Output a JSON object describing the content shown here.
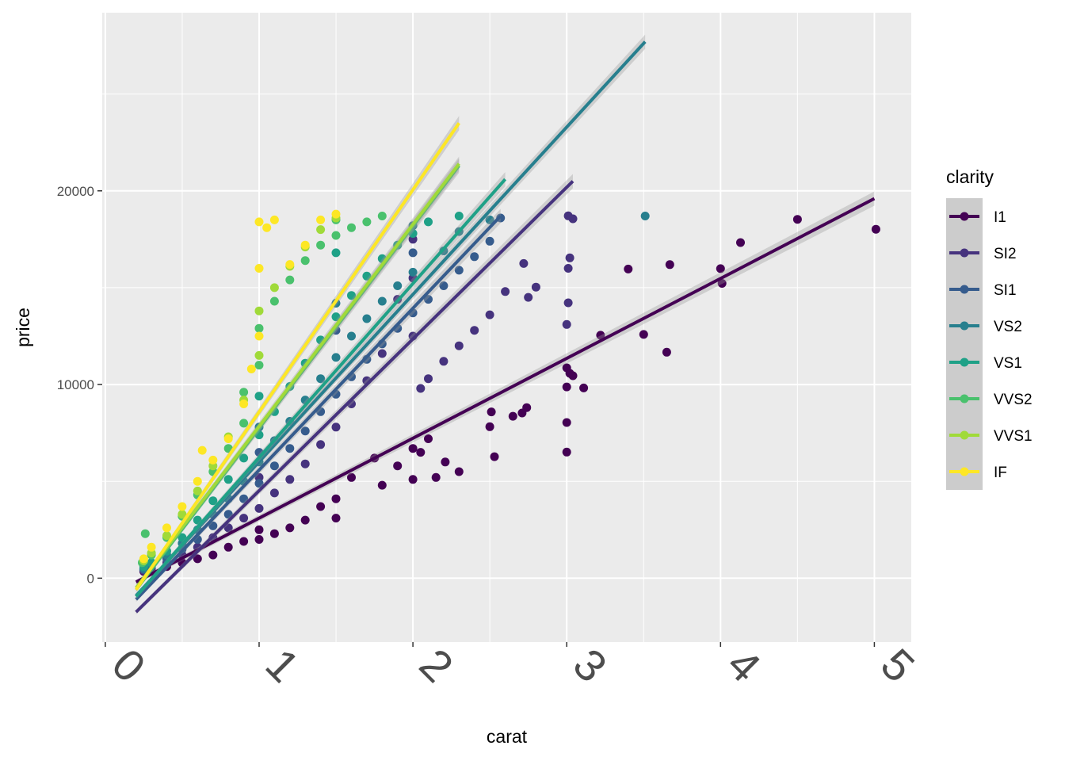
{
  "chart_data": {
    "type": "scatter",
    "title": "",
    "xlabel": "carat",
    "ylabel": "price",
    "xlim": [
      -0.02,
      5.24
    ],
    "ylim": [
      -3300,
      29200
    ],
    "x_ticks": [
      0,
      1,
      2,
      3,
      4,
      5
    ],
    "x_tick_labels": [
      "0",
      "1",
      "2",
      "3",
      "4",
      "5"
    ],
    "y_ticks": [
      0,
      10000,
      20000
    ],
    "y_tick_labels": [
      "0",
      "10000",
      "20000"
    ],
    "grid": true,
    "background": "#ebebeb",
    "legend": {
      "title": "clarity",
      "position": "right"
    },
    "series": [
      {
        "name": "I1",
        "color": "#440154",
        "fit": {
          "x": [
            0.2,
            5.0
          ],
          "y": [
            -200,
            19600
          ]
        },
        "points": [
          [
            5.01,
            18018
          ],
          [
            4.5,
            18531
          ],
          [
            4.13,
            17329
          ],
          [
            4.0,
            15984
          ],
          [
            4.01,
            15223
          ],
          [
            3.67,
            16193
          ],
          [
            3.65,
            11668
          ],
          [
            3.5,
            12587
          ],
          [
            3.4,
            15964
          ],
          [
            3.22,
            12545
          ],
          [
            3.11,
            9823
          ],
          [
            3.02,
            10577
          ],
          [
            3.04,
            10453
          ],
          [
            3.0,
            10863
          ],
          [
            3.0,
            9876
          ],
          [
            3.0,
            8040
          ],
          [
            3.0,
            6512
          ],
          [
            2.74,
            8807
          ],
          [
            2.71,
            8530
          ],
          [
            2.65,
            8363
          ],
          [
            2.53,
            6272
          ],
          [
            2.51,
            8585
          ],
          [
            2.5,
            7823
          ],
          [
            2.3,
            5500
          ],
          [
            2.21,
            6000
          ],
          [
            2.15,
            5200
          ],
          [
            2.1,
            7200
          ],
          [
            2.05,
            6500
          ],
          [
            2.0,
            5100
          ],
          [
            2.0,
            6700
          ],
          [
            1.9,
            5800
          ],
          [
            1.8,
            4800
          ],
          [
            1.75,
            6200
          ],
          [
            1.6,
            5200
          ],
          [
            1.5,
            4100
          ],
          [
            1.5,
            3100
          ],
          [
            1.4,
            3700
          ],
          [
            1.3,
            3000
          ],
          [
            1.2,
            2600
          ],
          [
            1.1,
            2300
          ],
          [
            1.0,
            2500
          ],
          [
            1.0,
            2000
          ],
          [
            0.9,
            1900
          ],
          [
            0.8,
            1600
          ],
          [
            0.7,
            1200
          ],
          [
            0.6,
            1000
          ],
          [
            0.5,
            800
          ],
          [
            0.4,
            600
          ],
          [
            0.3,
            400
          ],
          [
            0.25,
            350
          ]
        ]
      },
      {
        "name": "SI2",
        "color": "#46337e",
        "fit": {
          "x": [
            0.2,
            3.04
          ],
          "y": [
            -1750,
            20500
          ]
        },
        "points": [
          [
            3.01,
            18710
          ],
          [
            3.04,
            18559
          ],
          [
            3.02,
            16538
          ],
          [
            3.01,
            16000
          ],
          [
            3.01,
            14220
          ],
          [
            3.0,
            13100
          ],
          [
            2.8,
            15030
          ],
          [
            2.75,
            14500
          ],
          [
            2.72,
            16250
          ],
          [
            2.6,
            14800
          ],
          [
            2.5,
            13600
          ],
          [
            2.4,
            12800
          ],
          [
            2.3,
            12000
          ],
          [
            2.2,
            11200
          ],
          [
            2.1,
            10300
          ],
          [
            2.05,
            9800
          ],
          [
            2.0,
            12500
          ],
          [
            2.0,
            15500
          ],
          [
            2.0,
            17500
          ],
          [
            1.9,
            14400
          ],
          [
            1.8,
            11600
          ],
          [
            1.7,
            10200
          ],
          [
            1.6,
            9000
          ],
          [
            1.5,
            7800
          ],
          [
            1.4,
            6900
          ],
          [
            1.3,
            5900
          ],
          [
            1.2,
            5100
          ],
          [
            1.1,
            4400
          ],
          [
            1.0,
            3600
          ],
          [
            1.0,
            5200
          ],
          [
            0.9,
            3100
          ],
          [
            0.8,
            2600
          ],
          [
            0.7,
            2100
          ],
          [
            0.6,
            1600
          ],
          [
            0.5,
            1200
          ],
          [
            0.4,
            800
          ],
          [
            0.3,
            500
          ],
          [
            0.25,
            400
          ]
        ]
      },
      {
        "name": "SI1",
        "color": "#365c8d",
        "fit": {
          "x": [
            0.2,
            2.57
          ],
          "y": [
            -1100,
            18700
          ]
        },
        "points": [
          [
            2.57,
            18600
          ],
          [
            2.5,
            17400
          ],
          [
            2.4,
            16600
          ],
          [
            2.3,
            15900
          ],
          [
            2.2,
            15100
          ],
          [
            2.1,
            14400
          ],
          [
            2.0,
            13700
          ],
          [
            2.0,
            16800
          ],
          [
            1.9,
            12900
          ],
          [
            1.8,
            12100
          ],
          [
            1.7,
            11300
          ],
          [
            1.6,
            10400
          ],
          [
            1.5,
            9500
          ],
          [
            1.5,
            12800
          ],
          [
            1.4,
            8600
          ],
          [
            1.3,
            7600
          ],
          [
            1.2,
            6700
          ],
          [
            1.1,
            5800
          ],
          [
            1.0,
            4900
          ],
          [
            1.0,
            6500
          ],
          [
            0.9,
            4100
          ],
          [
            0.8,
            3300
          ],
          [
            0.7,
            2700
          ],
          [
            0.6,
            2000
          ],
          [
            0.5,
            1500
          ],
          [
            0.4,
            1000
          ],
          [
            0.3,
            600
          ],
          [
            0.25,
            450
          ]
        ]
      },
      {
        "name": "VS2",
        "color": "#277f8e",
        "fit": {
          "x": [
            0.2,
            3.51
          ],
          "y": [
            -900,
            27700
          ]
        },
        "points": [
          [
            3.51,
            18701
          ],
          [
            2.5,
            18500
          ],
          [
            2.3,
            17900
          ],
          [
            2.2,
            16900
          ],
          [
            2.0,
            15800
          ],
          [
            2.0,
            18200
          ],
          [
            1.9,
            15100
          ],
          [
            1.8,
            14300
          ],
          [
            1.7,
            13400
          ],
          [
            1.6,
            12500
          ],
          [
            1.5,
            11400
          ],
          [
            1.5,
            14200
          ],
          [
            1.4,
            10300
          ],
          [
            1.3,
            9200
          ],
          [
            1.2,
            8100
          ],
          [
            1.1,
            7100
          ],
          [
            1.0,
            6000
          ],
          [
            1.0,
            7800
          ],
          [
            0.9,
            5000
          ],
          [
            0.8,
            4100
          ],
          [
            0.7,
            3300
          ],
          [
            0.6,
            2500
          ],
          [
            0.5,
            1800
          ],
          [
            0.4,
            1200
          ],
          [
            0.3,
            700
          ],
          [
            0.25,
            500
          ]
        ]
      },
      {
        "name": "VS1",
        "color": "#1fa187",
        "fit": {
          "x": [
            0.2,
            2.6
          ],
          "y": [
            -950,
            20600
          ]
        },
        "points": [
          [
            2.3,
            18700
          ],
          [
            2.1,
            18400
          ],
          [
            2.0,
            17800
          ],
          [
            1.9,
            17200
          ],
          [
            1.8,
            16500
          ],
          [
            1.7,
            15600
          ],
          [
            1.6,
            14600
          ],
          [
            1.5,
            13500
          ],
          [
            1.5,
            16800
          ],
          [
            1.4,
            12300
          ],
          [
            1.3,
            11100
          ],
          [
            1.2,
            9900
          ],
          [
            1.1,
            8600
          ],
          [
            1.0,
            7400
          ],
          [
            1.0,
            9400
          ],
          [
            0.9,
            6200
          ],
          [
            0.8,
            5100
          ],
          [
            0.7,
            4000
          ],
          [
            0.6,
            3000
          ],
          [
            0.5,
            2100
          ],
          [
            0.4,
            1400
          ],
          [
            0.3,
            800
          ],
          [
            0.25,
            600
          ]
        ]
      },
      {
        "name": "VVS2",
        "color": "#4ac16d",
        "fit": {
          "x": [
            0.2,
            2.3
          ],
          "y": [
            -600,
            21300
          ]
        },
        "points": [
          [
            1.8,
            18700
          ],
          [
            1.7,
            18400
          ],
          [
            1.6,
            18100
          ],
          [
            1.5,
            17700
          ],
          [
            1.5,
            18500
          ],
          [
            1.4,
            17200
          ],
          [
            1.3,
            16400
          ],
          [
            1.2,
            15400
          ],
          [
            1.1,
            14300
          ],
          [
            1.0,
            12900
          ],
          [
            1.0,
            11000
          ],
          [
            0.9,
            9600
          ],
          [
            0.9,
            8000
          ],
          [
            0.8,
            6700
          ],
          [
            0.7,
            5500
          ],
          [
            0.6,
            4300
          ],
          [
            0.5,
            3200
          ],
          [
            0.4,
            2100
          ],
          [
            0.3,
            1200
          ],
          [
            0.26,
            2300
          ],
          [
            0.24,
            800
          ]
        ]
      },
      {
        "name": "VVS1",
        "color": "#a0da39",
        "fit": {
          "x": [
            0.2,
            2.3
          ],
          "y": [
            -500,
            21400
          ]
        },
        "points": [
          [
            1.5,
            18600
          ],
          [
            1.4,
            18000
          ],
          [
            1.3,
            17100
          ],
          [
            1.2,
            16100
          ],
          [
            1.1,
            15000
          ],
          [
            1.0,
            13800
          ],
          [
            1.0,
            11500
          ],
          [
            0.9,
            9200
          ],
          [
            0.8,
            7300
          ],
          [
            0.7,
            5800
          ],
          [
            0.6,
            4500
          ],
          [
            0.5,
            3300
          ],
          [
            0.4,
            2200
          ],
          [
            0.3,
            1300
          ],
          [
            0.25,
            900
          ]
        ]
      },
      {
        "name": "IF",
        "color": "#fde725",
        "fit": {
          "x": [
            0.2,
            2.3
          ],
          "y": [
            -600,
            23500
          ]
        },
        "points": [
          [
            1.5,
            18800
          ],
          [
            1.4,
            18500
          ],
          [
            1.3,
            17200
          ],
          [
            1.2,
            16200
          ],
          [
            1.1,
            18500
          ],
          [
            1.05,
            18100
          ],
          [
            1.0,
            18400
          ],
          [
            1.0,
            16000
          ],
          [
            1.0,
            12500
          ],
          [
            0.95,
            10800
          ],
          [
            0.9,
            9000
          ],
          [
            0.8,
            7200
          ],
          [
            0.7,
            6100
          ],
          [
            0.63,
            6600
          ],
          [
            0.6,
            5000
          ],
          [
            0.5,
            3700
          ],
          [
            0.4,
            2600
          ],
          [
            0.3,
            1600
          ],
          [
            0.25,
            1000
          ]
        ]
      }
    ]
  }
}
